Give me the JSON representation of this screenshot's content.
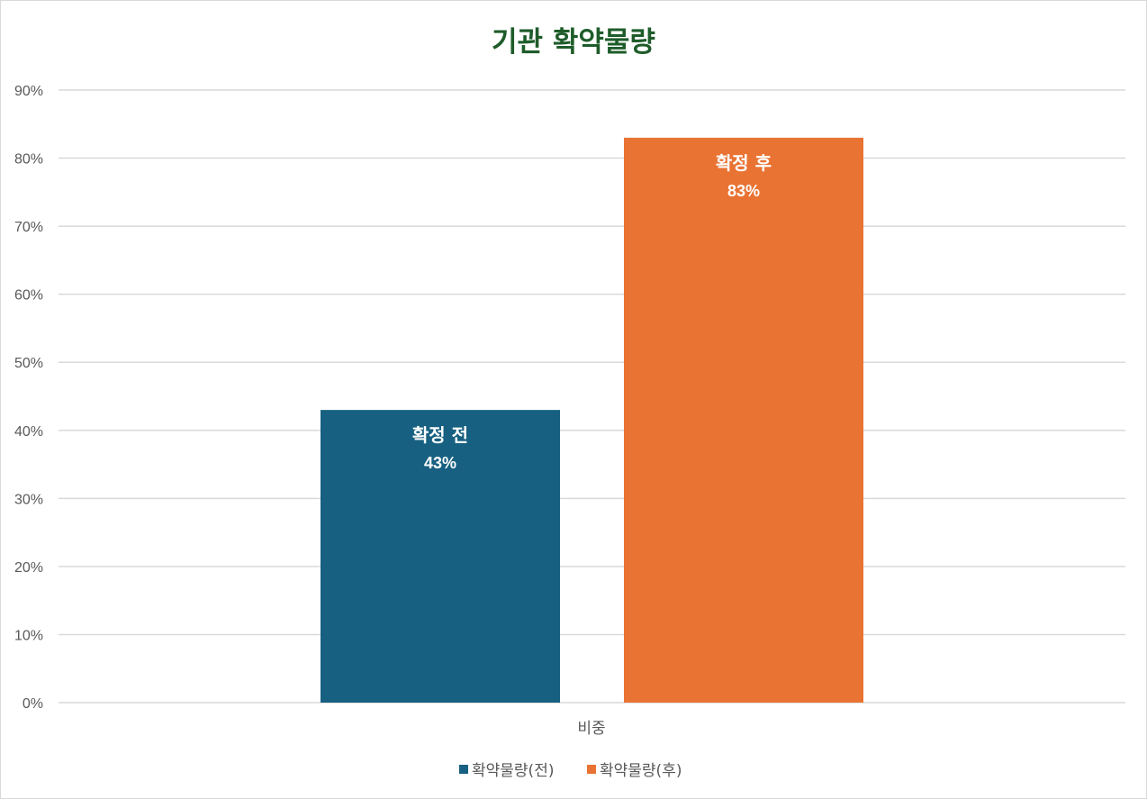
{
  "chart_data": {
    "type": "bar",
    "title": "기관 확약물량",
    "categories": [
      "비중"
    ],
    "series": [
      {
        "name": "확약물량(전)",
        "values": [
          0.43
        ],
        "label": "확정 전",
        "value_label": "43%",
        "color": "#176081"
      },
      {
        "name": "확약물량(후)",
        "values": [
          0.83
        ],
        "label": "확정 후",
        "value_label": "83%",
        "color": "#e97333"
      }
    ],
    "ylim": [
      0,
      0.9
    ],
    "yticks": [
      "0%",
      "10%",
      "20%",
      "30%",
      "40%",
      "50%",
      "60%",
      "70%",
      "80%",
      "90%"
    ],
    "grid": true,
    "legend": "bottom",
    "colors": {
      "grid": "#d9d9d9",
      "axis_text": "#595959",
      "title": "#1e5c2a"
    }
  }
}
